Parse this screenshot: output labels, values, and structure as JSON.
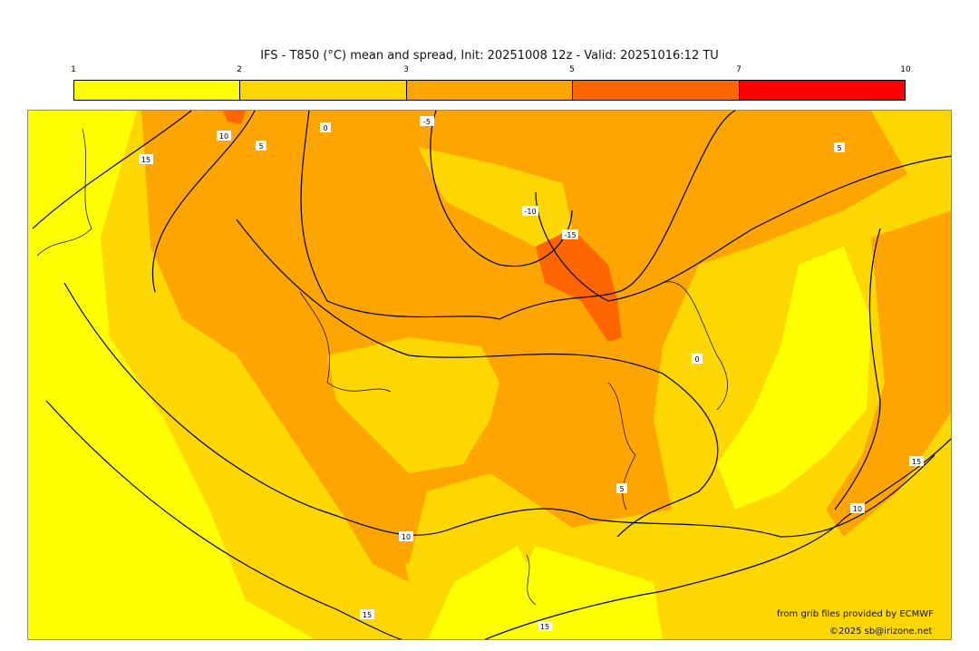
{
  "title": "IFS - T850 (°C) mean and spread, Init: 20251008 12z - Valid: 20251016:12 TU",
  "colorbar": {
    "ticks": [
      "1",
      "2",
      "3",
      "5",
      "7",
      "10"
    ],
    "colors": [
      "#ffff00",
      "#ffd700",
      "#ffa500",
      "#ff6600",
      "#ff0000"
    ]
  },
  "map": {
    "background_color": "#ffffff",
    "contour_labels": [
      "10",
      "15",
      "5",
      "0",
      "-5",
      "-10",
      "-15",
      "5",
      "0",
      "5",
      "10",
      "15",
      "10",
      "15",
      "15"
    ]
  },
  "credits": {
    "source": "from grib files provided by ECMWF",
    "copyright": "©2025 sb@irizone.net"
  }
}
